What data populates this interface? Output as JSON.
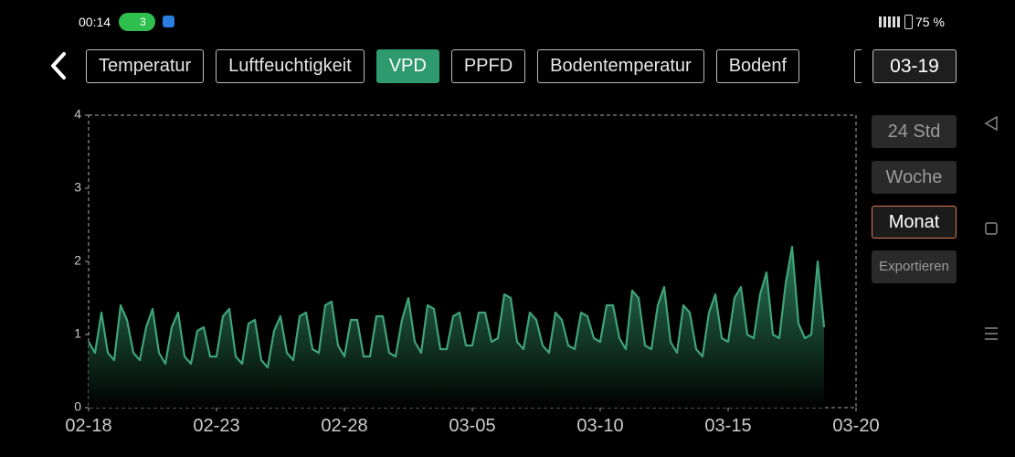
{
  "status_bar": {
    "time": "00:14",
    "wifi_badge": "3",
    "battery": "75 %"
  },
  "tabs": [
    {
      "label": "Temperatur"
    },
    {
      "label": "Luftfeuchtigkeit"
    },
    {
      "label": "VPD",
      "active": true
    },
    {
      "label": "PPFD"
    },
    {
      "label": "Bodentemperatur"
    },
    {
      "label": "Bodenf"
    }
  ],
  "date": "03-19",
  "range_buttons": [
    {
      "label": "24 Std"
    },
    {
      "label": "Woche"
    },
    {
      "label": "Monat",
      "selected": true
    }
  ],
  "export_button": "Exportieren",
  "chart_data": {
    "type": "area",
    "color": "#3fa37a",
    "ylim": [
      0,
      4
    ],
    "yticks": [
      0,
      1,
      2,
      3,
      4
    ],
    "xticks": [
      "02-18",
      "02-23",
      "02-28",
      "03-05",
      "03-10",
      "03-15",
      "03-20"
    ],
    "series": [
      {
        "values": [
          0.9,
          0.75,
          1.3,
          0.75,
          0.65,
          1.4,
          1.2,
          0.75,
          0.65,
          1.1,
          1.35,
          0.75,
          0.6,
          1.1,
          1.3,
          0.7,
          0.6,
          1.05,
          1.1,
          0.7,
          0.7,
          1.25,
          1.35,
          0.7,
          0.6,
          1.15,
          1.2,
          0.65,
          0.55,
          1.05,
          1.25,
          0.75,
          0.65,
          1.25,
          1.3,
          0.8,
          0.75,
          1.4,
          1.45,
          0.85,
          0.7,
          1.2,
          1.2,
          0.7,
          0.7,
          1.25,
          1.25,
          0.75,
          0.7,
          1.2,
          1.5,
          0.9,
          0.75,
          1.4,
          1.35,
          0.8,
          0.8,
          1.25,
          1.3,
          0.85,
          0.85,
          1.3,
          1.3,
          0.9,
          0.95,
          1.55,
          1.5,
          0.9,
          0.8,
          1.3,
          1.2,
          0.85,
          0.75,
          1.3,
          1.2,
          0.85,
          0.8,
          1.3,
          1.25,
          0.95,
          0.9,
          1.4,
          1.4,
          0.95,
          0.8,
          1.6,
          1.5,
          0.85,
          0.8,
          1.4,
          1.65,
          0.9,
          0.75,
          1.4,
          1.3,
          0.8,
          0.7,
          1.3,
          1.55,
          0.95,
          0.9,
          1.5,
          1.65,
          1.0,
          0.95,
          1.55,
          1.85,
          1.0,
          0.95,
          1.7,
          2.2,
          1.15,
          0.95,
          1.0,
          2.0,
          1.1,
          null,
          null,
          null,
          null
        ]
      }
    ]
  }
}
